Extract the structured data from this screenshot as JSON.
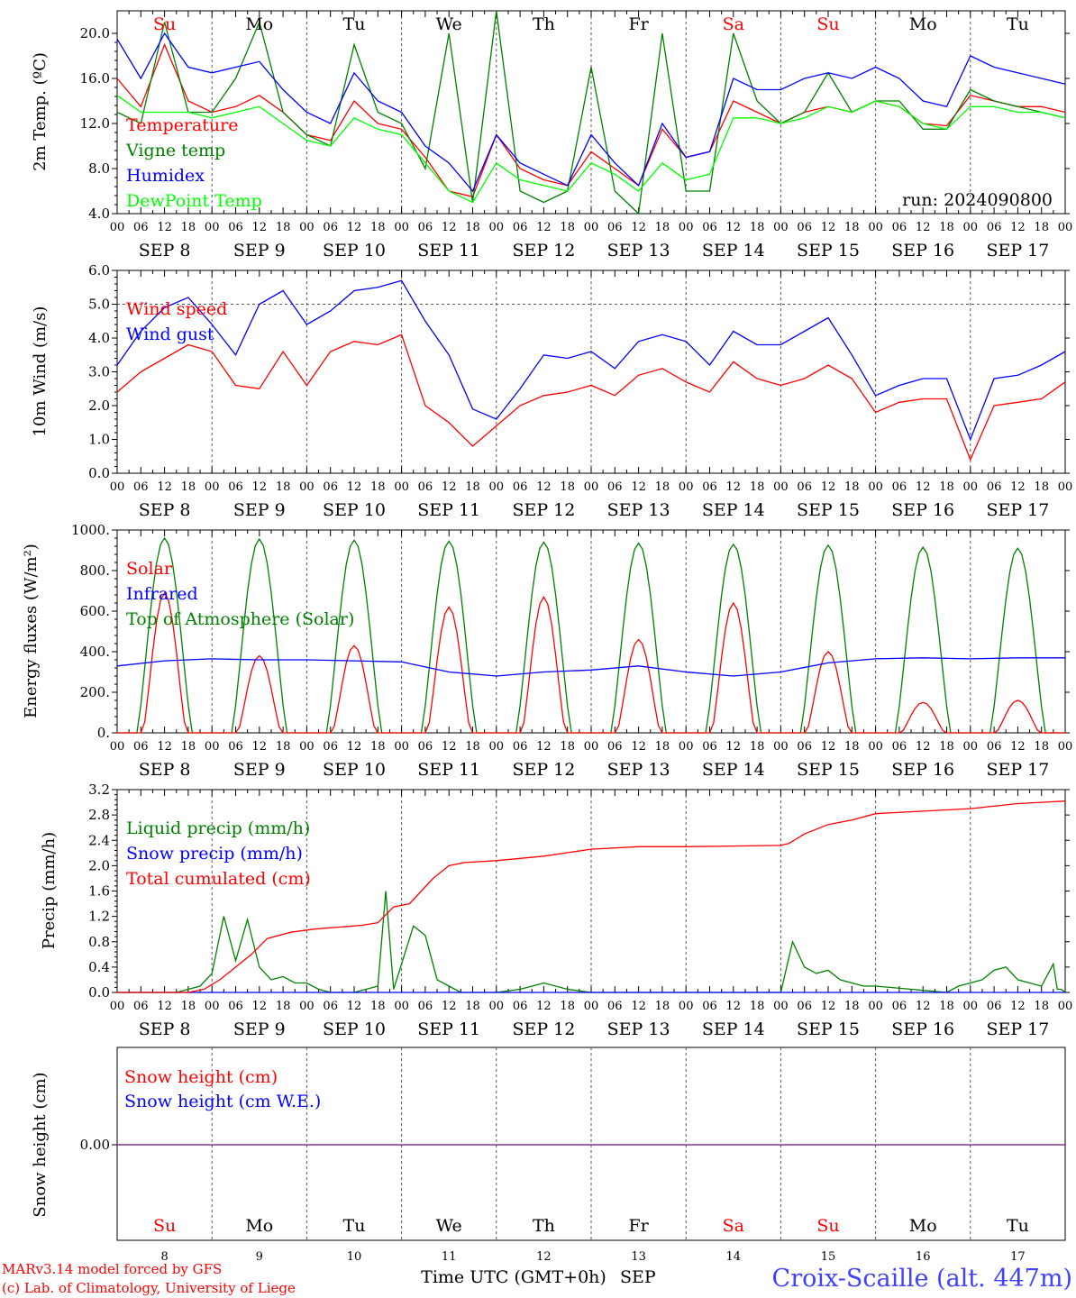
{
  "x_labels": {
    "hours": [
      "00",
      "06",
      "12",
      "18"
    ],
    "dates": [
      "SEP  8",
      "SEP  9",
      "SEP 10",
      "SEP 11",
      "SEP 12",
      "SEP 13",
      "SEP 14",
      "SEP 15",
      "SEP 16",
      "SEP 17"
    ],
    "weekdays": [
      "Su",
      "Mo",
      "Tu",
      "We",
      "Th",
      "Fr",
      "Sa",
      "Su",
      "Mo",
      "Tu"
    ],
    "weekday_colors": [
      "#ff0000",
      "#000000",
      "#000000",
      "#000000",
      "#000000",
      "#000000",
      "#ff0000",
      "#ff0000",
      "#000000",
      "#000000"
    ],
    "day_numbers": [
      "8",
      "9",
      "10",
      "11",
      "12",
      "13",
      "14",
      "15",
      "16",
      "17"
    ]
  },
  "footer": {
    "model_line": "MARv3.14 model forced by GFS",
    "lab_line": "(c) Lab. of Climatology, University of Liege",
    "xaxis_title": "Time UTC (GMT+0h)",
    "month": "SEP",
    "station": "Croix-Scaille (alt. 447m)"
  },
  "chart_data": [
    {
      "id": "temperature",
      "type": "line",
      "ylabel": "2m Temp. (ºC)",
      "ylim": [
        4,
        22
      ],
      "yticks": [
        4.0,
        8.0,
        12.0,
        16.0,
        20.0
      ],
      "ytick_labels": [
        "4.0",
        "8.0",
        "12.0",
        "16.0",
        "20.0"
      ],
      "run_label": "run: 2024090800",
      "x_hours": [
        0,
        6,
        12,
        18,
        24,
        30,
        36,
        42,
        48,
        54,
        60,
        66,
        72,
        78,
        84,
        90,
        96,
        102,
        108,
        114,
        120,
        126,
        132,
        138,
        144,
        150,
        156,
        162,
        168,
        174,
        180,
        186,
        192,
        198,
        204,
        210,
        216,
        222,
        228,
        234,
        240
      ],
      "series": [
        {
          "name": "Temperature",
          "color": "#ff0000",
          "values": [
            16,
            13.5,
            19,
            14,
            13,
            13.5,
            14.5,
            13,
            11,
            10.5,
            14,
            12,
            11.5,
            9,
            6,
            5.5,
            11,
            8,
            7,
            6.5,
            9.5,
            8,
            6.5,
            11.5,
            9,
            9.5,
            14,
            13,
            12,
            13,
            13.5,
            13,
            14,
            13.5,
            12,
            11.8,
            14.5,
            14,
            13.5,
            13.5,
            13
          ]
        },
        {
          "name": "Vigne temp",
          "color": "#008000",
          "values": [
            13,
            12,
            21,
            13,
            13,
            16,
            21,
            13,
            11,
            10,
            19,
            13,
            12,
            8,
            20,
            5,
            22,
            6,
            5,
            6,
            17,
            6,
            4,
            20,
            6,
            6,
            20,
            14,
            12,
            13,
            16.5,
            13,
            14,
            14,
            11.5,
            11.5,
            15,
            14,
            13.5,
            13,
            12.5
          ]
        },
        {
          "name": "Humidex",
          "color": "#0000ff",
          "values": [
            19.5,
            16,
            20,
            17,
            16.5,
            17,
            17.5,
            15,
            13,
            12,
            16.5,
            14,
            13,
            10,
            8.5,
            6,
            11,
            8.5,
            7.5,
            6.5,
            11,
            8.5,
            6.5,
            12,
            9,
            9.5,
            16,
            15,
            15,
            16,
            16.5,
            16,
            17,
            16,
            14,
            13.5,
            18,
            17,
            16.5,
            16,
            15.5
          ]
        },
        {
          "name": "DewPoint Temp",
          "color": "#00ff00",
          "values": [
            14.5,
            13,
            13,
            13,
            12.5,
            13,
            13.5,
            12,
            10.5,
            10,
            12.5,
            11.5,
            11,
            8.5,
            6,
            5,
            8.5,
            7,
            6.5,
            6,
            8.5,
            7.5,
            6,
            8.5,
            7,
            7.5,
            12.5,
            12.5,
            12,
            12.5,
            13.5,
            13,
            14,
            13.5,
            12,
            11.5,
            13.5,
            13.5,
            13,
            13,
            12.5
          ]
        }
      ]
    },
    {
      "id": "wind",
      "type": "line",
      "ylabel": "10m Wind (m/s)",
      "ylim": [
        0,
        6
      ],
      "yticks": [
        0,
        1,
        2,
        3,
        4,
        5,
        6
      ],
      "ytick_labels": [
        "0.0",
        "1.0",
        "2.0",
        "3.0",
        "4.0",
        "5.0",
        "6.0"
      ],
      "x_hours": [
        0,
        6,
        12,
        18,
        24,
        30,
        36,
        42,
        48,
        54,
        60,
        66,
        72,
        78,
        84,
        90,
        96,
        102,
        108,
        114,
        120,
        126,
        132,
        138,
        144,
        150,
        156,
        162,
        168,
        174,
        180,
        186,
        192,
        198,
        204,
        210,
        216,
        222,
        228,
        234,
        240
      ],
      "series": [
        {
          "name": "Wind speed",
          "color": "#ff0000",
          "values": [
            2.4,
            3,
            3.4,
            3.8,
            3.6,
            2.6,
            2.5,
            3.6,
            2.6,
            3.6,
            3.9,
            3.8,
            4.1,
            2,
            1.5,
            0.8,
            1.4,
            2,
            2.3,
            2.4,
            2.6,
            2.3,
            2.9,
            3.1,
            2.7,
            2.4,
            3.3,
            2.8,
            2.6,
            2.8,
            3.2,
            2.8,
            1.8,
            2.1,
            2.2,
            2.2,
            0.4,
            2,
            2.1,
            2.2,
            2.7
          ]
        },
        {
          "name": "Wind gust",
          "color": "#0000ff",
          "values": [
            3.2,
            4.2,
            4.9,
            5.2,
            4.4,
            3.5,
            5,
            5.4,
            4.4,
            4.8,
            5.4,
            5.5,
            5.7,
            4.5,
            3.5,
            1.9,
            1.6,
            2.5,
            3.5,
            3.4,
            3.6,
            3.1,
            3.9,
            4.1,
            3.9,
            3.2,
            4.2,
            3.8,
            3.8,
            4.2,
            4.6,
            3.5,
            2.3,
            2.6,
            2.8,
            2.8,
            1,
            2.8,
            2.9,
            3.2,
            3.6
          ]
        }
      ]
    },
    {
      "id": "energy",
      "type": "line",
      "ylabel": "Energy fluxes (W/m²)",
      "ylim": [
        0,
        1000
      ],
      "yticks": [
        0,
        200,
        400,
        600,
        800,
        1000
      ],
      "ytick_labels": [
        "0.",
        "200.",
        "400.",
        "600.",
        "800.",
        "1000."
      ],
      "day_max": {
        "Top of Atmosphere (Solar)": [
          960,
          955,
          950,
          945,
          940,
          935,
          930,
          925,
          915,
          910
        ],
        "Solar": [
          690,
          380,
          430,
          620,
          670,
          460,
          640,
          400,
          150,
          160
        ]
      },
      "series": [
        {
          "name": "Solar",
          "color": "#ff0000"
        },
        {
          "name": "Infrared",
          "color": "#0000ff",
          "x_hours": [
            0,
            12,
            24,
            36,
            48,
            60,
            72,
            84,
            96,
            108,
            120,
            132,
            144,
            156,
            168,
            180,
            192,
            204,
            216,
            228,
            240
          ],
          "values": [
            330,
            355,
            365,
            360,
            360,
            355,
            350,
            300,
            280,
            300,
            310,
            330,
            300,
            280,
            300,
            345,
            365,
            370,
            365,
            370,
            370
          ]
        },
        {
          "name": "Top of Atmosphere (Solar)",
          "color": "#008000"
        }
      ]
    },
    {
      "id": "precip",
      "type": "line",
      "ylabel": "Precip (mm/h)",
      "ylim": [
        0,
        3.2
      ],
      "yticks": [
        0,
        0.4,
        0.8,
        1.2,
        1.6,
        2.0,
        2.4,
        2.8,
        3.2
      ],
      "ytick_labels": [
        "0.0",
        "0.4",
        "0.8",
        "1.2",
        "1.6",
        "2.0",
        "2.4",
        "2.8",
        "3.2"
      ],
      "series": [
        {
          "name": "Liquid precip (mm/h)",
          "color": "#008000",
          "x_hours": [
            0,
            15,
            18,
            21,
            24,
            27,
            30,
            33,
            36,
            39,
            42,
            45,
            48,
            51,
            54,
            60,
            66,
            68,
            70,
            72,
            75,
            78,
            81,
            84,
            87,
            90,
            96,
            102,
            105,
            108,
            114,
            120,
            126,
            132,
            138,
            144,
            168,
            171,
            174,
            177,
            180,
            183,
            186,
            189,
            192,
            210,
            213,
            216,
            219,
            222,
            225,
            228,
            231,
            234,
            237,
            238,
            239,
            240
          ],
          "values": [
            0,
            0,
            0.05,
            0.1,
            0.3,
            1.2,
            0.5,
            1.15,
            0.4,
            0.2,
            0.25,
            0.15,
            0.15,
            0.05,
            0,
            0,
            0.1,
            1.6,
            0.05,
            0.45,
            1.05,
            0.9,
            0.2,
            0.1,
            0,
            0,
            0,
            0.05,
            0.1,
            0.15,
            0.05,
            0,
            0,
            0,
            0,
            0,
            0,
            0.8,
            0.4,
            0.3,
            0.35,
            0.2,
            0.15,
            0.1,
            0.1,
            0,
            0.1,
            0.15,
            0.2,
            0.35,
            0.4,
            0.2,
            0.15,
            0.1,
            0.45,
            0.05,
            0.05,
            0
          ]
        },
        {
          "name": "Snow precip (mm/h)",
          "color": "#0000ff",
          "x_hours": [
            0,
            240
          ],
          "values": [
            0,
            0
          ]
        },
        {
          "name": "Total cumulated (cm)",
          "color": "#ff0000",
          "x_hours": [
            0,
            18,
            22,
            26,
            30,
            34,
            38,
            44,
            50,
            56,
            62,
            66,
            70,
            74,
            80,
            84,
            88,
            96,
            108,
            120,
            132,
            144,
            156,
            168,
            170,
            174,
            180,
            186,
            192,
            204,
            216,
            228,
            234,
            240
          ],
          "values": [
            0,
            0,
            0.05,
            0.2,
            0.4,
            0.6,
            0.85,
            0.95,
            1.0,
            1.03,
            1.06,
            1.1,
            1.35,
            1.4,
            1.8,
            2.0,
            2.05,
            2.08,
            2.15,
            2.26,
            2.3,
            2.3,
            2.31,
            2.32,
            2.35,
            2.5,
            2.65,
            2.72,
            2.82,
            2.86,
            2.9,
            2.98,
            3.0,
            3.02
          ]
        }
      ]
    },
    {
      "id": "snow",
      "type": "line",
      "ylabel": "Snow height (cm)",
      "yticks": [
        0
      ],
      "ytick_labels": [
        "0.00"
      ],
      "series": [
        {
          "name": "Snow height (cm)",
          "color": "#ff0000",
          "x_hours": [
            0,
            240
          ],
          "values": [
            0,
            0
          ]
        },
        {
          "name": "Snow height (cm W.E.)",
          "color": "#0000ff",
          "x_hours": [
            0,
            240
          ],
          "values": [
            0,
            0
          ]
        }
      ]
    }
  ]
}
